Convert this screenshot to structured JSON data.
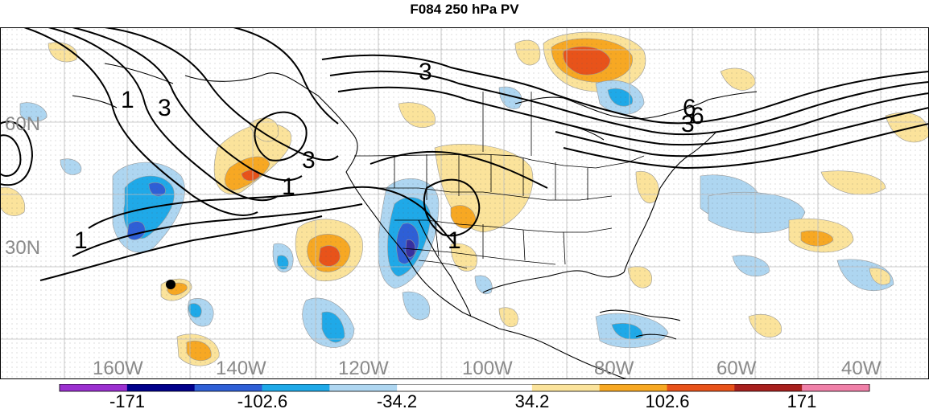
{
  "title": "F084 250 hPa PV",
  "lat_labels": [
    "60N",
    "30N"
  ],
  "lon_labels": [
    "160W",
    "140W",
    "120W",
    "100W",
    "80W",
    "60W",
    "40W"
  ],
  "contour_labels": [
    "3",
    "3",
    "3",
    "6",
    "1",
    "1",
    "1",
    "1",
    "3",
    "6"
  ],
  "colorbar": {
    "colors": [
      "#9b30d0",
      "#00008b",
      "#2e5fd6",
      "#1fa9e8",
      "#aed6f1",
      "#ffffff",
      "#ffffff",
      "#fbe39b",
      "#f7a823",
      "#e8531a",
      "#a8201e",
      "#f080a8"
    ],
    "labels": [
      "-171",
      "-102.6",
      "-34.2",
      "34.2",
      "102.6",
      "171"
    ]
  },
  "palette": {
    "light_blue": "#aed6f1",
    "blue": "#1fa9e8",
    "mid_blue": "#2e5fd6",
    "yellow": "#fbe39b",
    "orange": "#f7a823",
    "red_orange": "#e8531a"
  }
}
